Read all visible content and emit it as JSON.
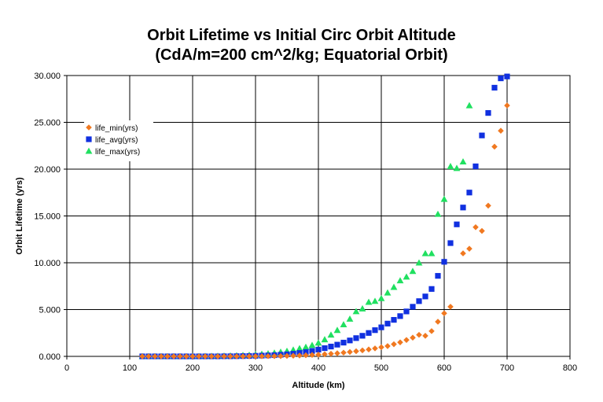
{
  "chart_data": {
    "type": "scatter",
    "title": "Orbit Lifetime vs Initial Circ Orbit Altitude",
    "subtitle": "(CdA/m=200 cm^2/kg; Equatorial Orbit)",
    "xlabel": "Altitude (km)",
    "ylabel": "Orbit Lifetime (yrs)",
    "xlim": [
      0,
      800
    ],
    "ylim": [
      0,
      30
    ],
    "x_ticks": [
      "0",
      "100",
      "200",
      "300",
      "400",
      "500",
      "600",
      "700",
      "800"
    ],
    "y_ticks": [
      "0.000",
      "5.000",
      "10.000",
      "15.000",
      "20.000",
      "25.000",
      "30.000"
    ],
    "grid": true,
    "legend_position": "left",
    "series": [
      {
        "name": "life_min(yrs)",
        "color": "#F07820",
        "marker": "diamond",
        "x": [
          120,
          130,
          140,
          150,
          160,
          170,
          180,
          190,
          200,
          210,
          220,
          230,
          240,
          250,
          260,
          270,
          280,
          290,
          300,
          310,
          320,
          330,
          340,
          350,
          360,
          370,
          380,
          390,
          400,
          410,
          420,
          430,
          440,
          450,
          460,
          470,
          480,
          490,
          500,
          510,
          520,
          530,
          540,
          550,
          560,
          570,
          580,
          590,
          600,
          610,
          620,
          630,
          640,
          650,
          660,
          670,
          680,
          690,
          700
        ],
        "y": [
          0,
          0,
          0,
          0,
          0,
          0,
          0,
          0,
          0,
          0,
          0,
          0,
          0,
          0,
          0,
          0,
          0,
          0,
          0.01,
          0.01,
          0.02,
          0.02,
          0.03,
          0.05,
          0.07,
          0.09,
          0.12,
          0.15,
          0.19,
          0.23,
          0.28,
          0.33,
          0.4,
          0.47,
          0.55,
          0.64,
          0.74,
          0.85,
          0.98,
          1.1,
          1.3,
          1.5,
          1.75,
          2.0,
          2.3,
          2.2,
          2.7,
          3.7,
          4.6,
          5.3,
          null,
          11.0,
          11.5,
          13.8,
          13.4,
          16.1,
          22.4,
          24.1,
          26.8
        ]
      },
      {
        "name": "life_avg(yrs)",
        "color": "#1030E0",
        "marker": "square",
        "x": [
          120,
          130,
          140,
          150,
          160,
          170,
          180,
          190,
          200,
          210,
          220,
          230,
          240,
          250,
          260,
          270,
          280,
          290,
          300,
          310,
          320,
          330,
          340,
          350,
          360,
          370,
          380,
          390,
          400,
          410,
          420,
          430,
          440,
          450,
          460,
          470,
          480,
          490,
          500,
          510,
          520,
          530,
          540,
          550,
          560,
          570,
          580,
          590,
          600,
          610,
          620,
          630,
          640,
          650,
          660,
          670,
          680,
          690,
          700
        ],
        "y": [
          0,
          0,
          0,
          0,
          0,
          0,
          0,
          0,
          0,
          0,
          0,
          0,
          0,
          0.01,
          0.01,
          0.02,
          0.03,
          0.04,
          0.06,
          0.08,
          0.1,
          0.13,
          0.17,
          0.22,
          0.28,
          0.36,
          0.46,
          0.58,
          0.72,
          0.88,
          1.05,
          1.25,
          1.47,
          1.7,
          1.95,
          2.2,
          2.5,
          2.8,
          3.1,
          3.5,
          3.9,
          4.3,
          4.8,
          5.3,
          5.9,
          6.4,
          7.2,
          8.6,
          10.1,
          12.1,
          14.1,
          15.9,
          17.5,
          20.3,
          23.6,
          26.0,
          28.7,
          29.7,
          29.9
        ]
      },
      {
        "name": "life_max(yrs)",
        "color": "#20E060",
        "marker": "triangle",
        "x": [
          120,
          130,
          140,
          150,
          160,
          170,
          180,
          190,
          200,
          210,
          220,
          230,
          240,
          250,
          260,
          270,
          280,
          290,
          300,
          310,
          320,
          330,
          340,
          350,
          360,
          370,
          380,
          390,
          400,
          410,
          420,
          430,
          440,
          450,
          460,
          470,
          480,
          490,
          500,
          510,
          520,
          530,
          540,
          550,
          560,
          570,
          580,
          590,
          600,
          610,
          620,
          630,
          640
        ],
        "y": [
          0,
          0,
          0,
          0,
          0,
          0,
          0,
          0,
          0.01,
          0.01,
          0.02,
          0.03,
          0.04,
          0.05,
          0.07,
          0.09,
          0.12,
          0.15,
          0.2,
          0.25,
          0.3,
          0.38,
          0.47,
          0.57,
          0.7,
          0.85,
          1.0,
          1.2,
          1.45,
          1.8,
          2.3,
          2.8,
          3.4,
          4.0,
          4.8,
          5.1,
          5.8,
          5.9,
          6.2,
          6.8,
          7.4,
          8.1,
          8.5,
          9.1,
          10.0,
          11.0,
          11.0,
          15.2,
          16.8,
          20.3,
          20.1,
          20.8,
          26.8
        ]
      }
    ]
  }
}
